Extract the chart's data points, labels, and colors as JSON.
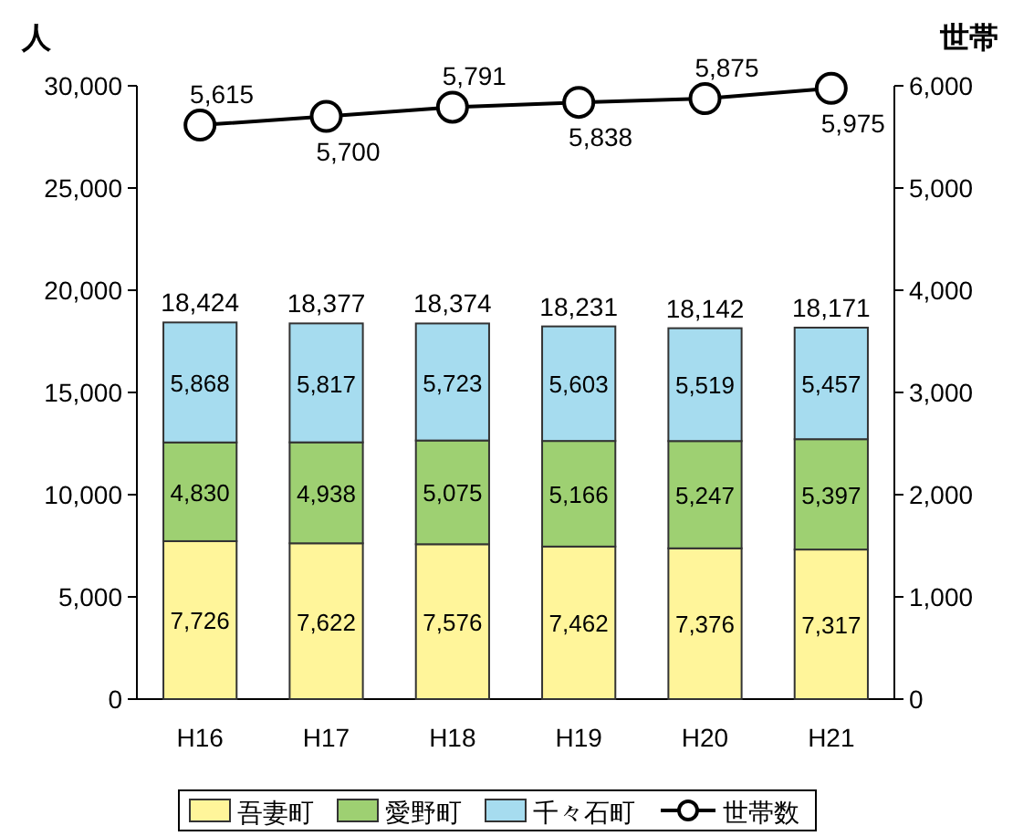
{
  "chart_data": {
    "type": "bar",
    "stacked": true,
    "categories": [
      "H16",
      "H17",
      "H18",
      "H19",
      "H20",
      "H21"
    ],
    "series": [
      {
        "name": "吾妻町",
        "color": "#fff59a",
        "values": [
          7726,
          7622,
          7576,
          7462,
          7376,
          7317
        ],
        "value_labels": [
          "7,726",
          "7,622",
          "7,576",
          "7,462",
          "7,376",
          "7,317"
        ]
      },
      {
        "name": "愛野町",
        "color": "#9ed072",
        "values": [
          4830,
          4938,
          5075,
          5166,
          5247,
          5397
        ],
        "value_labels": [
          "4,830",
          "4,938",
          "5,075",
          "5,166",
          "5,247",
          "5,397"
        ]
      },
      {
        "name": "千々石町",
        "color": "#a6dcef",
        "values": [
          5868,
          5817,
          5723,
          5603,
          5519,
          5457
        ],
        "value_labels": [
          "5,868",
          "5,817",
          "5,723",
          "5,603",
          "5,519",
          "5,457"
        ]
      },
      {
        "name": "世帯数",
        "type": "line",
        "axis": "y2",
        "color": "#000000",
        "marker": "circle",
        "values": [
          5615,
          5700,
          5791,
          5838,
          5875,
          5975
        ],
        "value_labels": [
          "5,615",
          "5,700",
          "5,791",
          "5,838",
          "5,875",
          "5,975"
        ]
      }
    ],
    "totals": [
      "18,424",
      "18,377",
      "18,374",
      "18,231",
      "18,142",
      "18,171"
    ],
    "ylabel": "人",
    "y2label": "世帯",
    "ylim": [
      0,
      30000
    ],
    "yticks": [
      {
        "value": 0,
        "label": "0"
      },
      {
        "value": 5000,
        "label": "5,000"
      },
      {
        "value": 10000,
        "label": "10,000"
      },
      {
        "value": 15000,
        "label": "15,000"
      },
      {
        "value": 20000,
        "label": "20,000"
      },
      {
        "value": 25000,
        "label": "25,000"
      },
      {
        "value": 30000,
        "label": "30,000"
      }
    ],
    "y2lim": [
      0,
      6000
    ],
    "y2ticks": [
      {
        "value": 0,
        "label": "0"
      },
      {
        "value": 1000,
        "label": "1,000"
      },
      {
        "value": 2000,
        "label": "2,000"
      },
      {
        "value": 3000,
        "label": "3,000"
      },
      {
        "value": 4000,
        "label": "4,000"
      },
      {
        "value": 5000,
        "label": "5,000"
      },
      {
        "value": 6000,
        "label": "6,000"
      }
    ],
    "legend": "bottom"
  }
}
